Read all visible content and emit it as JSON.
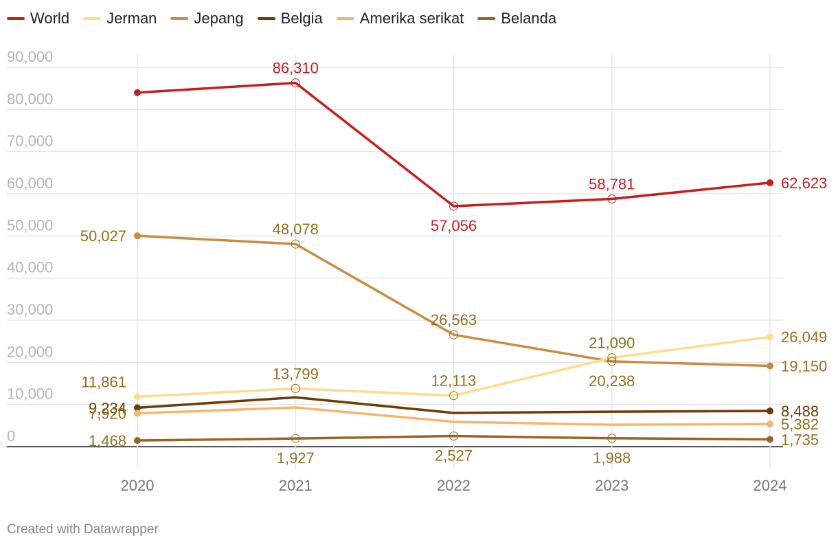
{
  "chart_data": {
    "type": "line",
    "title": "",
    "xlabel": "",
    "ylabel": "",
    "x": [
      "2020",
      "2021",
      "2022",
      "2023",
      "2024"
    ],
    "ylim": [
      0,
      90000
    ],
    "yticks": [
      0,
      10000,
      20000,
      30000,
      40000,
      50000,
      60000,
      70000,
      80000,
      90000
    ],
    "ytick_labels": [
      "0",
      "10,000",
      "20,000",
      "30,000",
      "40,000",
      "50,000",
      "60,000",
      "70,000",
      "80,000",
      "90,000"
    ],
    "grid": true,
    "legend": "top-left",
    "series": [
      {
        "name": "World",
        "color": "#c71e1d",
        "label_color": "#c71e1d",
        "values": [
          84000,
          86310,
          57056,
          58781,
          62623
        ],
        "labels": [
          "",
          "86,310",
          "57,056",
          "58,781",
          "62,623"
        ],
        "label_pos": [
          "",
          "above",
          "below",
          "above",
          "right"
        ]
      },
      {
        "name": "Jerman",
        "color": "#fedc8c",
        "label_color": "#946f1c",
        "values": [
          11861,
          13799,
          12113,
          21090,
          26049
        ],
        "labels": [
          "11,861",
          "13,799",
          "12,113",
          "21,090",
          "26,049"
        ],
        "label_pos": [
          "above-left",
          "above",
          "above",
          "above",
          "right"
        ]
      },
      {
        "name": "Jepang",
        "color": "#c98d40",
        "label_color": "#946f1c",
        "values": [
          50027,
          48078,
          26563,
          20238,
          19150
        ],
        "labels": [
          "50,027",
          "48,078",
          "26,563",
          "20,238",
          "19,150"
        ],
        "label_pos": [
          "left",
          "above",
          "above",
          "below",
          "right"
        ]
      },
      {
        "name": "Belgia",
        "color": "#6b3d03",
        "label_color": "#6b3d03",
        "values": [
          9234,
          11700,
          8000,
          8300,
          8488
        ],
        "labels": [
          "9,234",
          "",
          "",
          "",
          "8,488"
        ],
        "label_pos": [
          "left",
          "",
          "",
          "",
          "right"
        ]
      },
      {
        "name": "Amerika serikat",
        "color": "#f6b66a",
        "label_color": "#946f1c",
        "values": [
          7920,
          9300,
          5900,
          5200,
          5382
        ],
        "labels": [
          "7,920",
          "",
          "",
          "",
          "5,382"
        ],
        "label_pos": [
          "left",
          "",
          "",
          "",
          "right"
        ]
      },
      {
        "name": "Belanda",
        "color": "#9c6220",
        "label_color": "#946f1c",
        "values": [
          1468,
          1927,
          2527,
          1988,
          1735
        ],
        "labels": [
          "1,468",
          "1,927",
          "2,527",
          "1,988",
          "1,735"
        ],
        "label_pos": [
          "left",
          "below",
          "below",
          "below",
          "right"
        ]
      }
    ]
  },
  "footer": {
    "credit": "Created with Datawrapper"
  }
}
